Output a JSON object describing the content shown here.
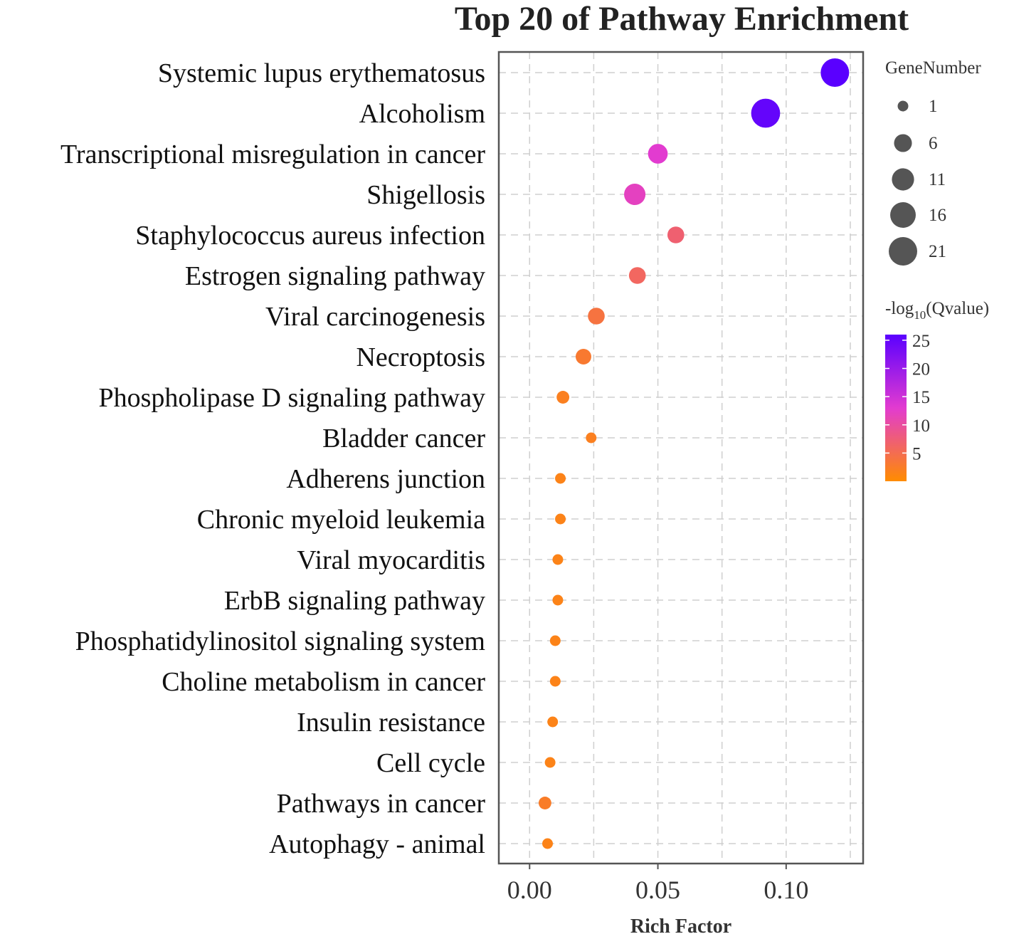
{
  "chart_data": {
    "type": "scatter",
    "title": "Top 20 of Pathway Enrichment",
    "xlabel": "Rich Factor",
    "ylabel": "",
    "xlim": [
      -0.012,
      0.13
    ],
    "xticks": [
      "0.00",
      "0.05",
      "0.10"
    ],
    "xtick_values": [
      0.0,
      0.05,
      0.1
    ],
    "grid": true,
    "points": [
      {
        "pathway": "Systemic lupus erythematosus",
        "rich_factor": 0.119,
        "gene_number": 21,
        "neg_log10_q": 26
      },
      {
        "pathway": "Alcoholism",
        "rich_factor": 0.092,
        "gene_number": 22,
        "neg_log10_q": 25
      },
      {
        "pathway": "Transcriptional misregulation in cancer",
        "rich_factor": 0.05,
        "gene_number": 8,
        "neg_log10_q": 13
      },
      {
        "pathway": "Shigellosis",
        "rich_factor": 0.041,
        "gene_number": 10,
        "neg_log10_q": 12
      },
      {
        "pathway": "Staphylococcus aureus infection",
        "rich_factor": 0.057,
        "gene_number": 5,
        "neg_log10_q": 7
      },
      {
        "pathway": "Estrogen signaling pathway",
        "rich_factor": 0.042,
        "gene_number": 5,
        "neg_log10_q": 6
      },
      {
        "pathway": "Viral carcinogenesis",
        "rich_factor": 0.026,
        "gene_number": 5,
        "neg_log10_q": 4
      },
      {
        "pathway": "Necroptosis",
        "rich_factor": 0.021,
        "gene_number": 4,
        "neg_log10_q": 3
      },
      {
        "pathway": "Phospholipase D signaling pathway",
        "rich_factor": 0.013,
        "gene_number": 2,
        "neg_log10_q": 2
      },
      {
        "pathway": "Bladder cancer",
        "rich_factor": 0.024,
        "gene_number": 1,
        "neg_log10_q": 2
      },
      {
        "pathway": "Adherens junction",
        "rich_factor": 0.012,
        "gene_number": 1,
        "neg_log10_q": 1.5
      },
      {
        "pathway": "Chronic myeloid leukemia",
        "rich_factor": 0.012,
        "gene_number": 1,
        "neg_log10_q": 1.5
      },
      {
        "pathway": "Viral myocarditis",
        "rich_factor": 0.011,
        "gene_number": 1,
        "neg_log10_q": 1.5
      },
      {
        "pathway": "ErbB signaling pathway",
        "rich_factor": 0.011,
        "gene_number": 1,
        "neg_log10_q": 1.5
      },
      {
        "pathway": "Phosphatidylinositol signaling system",
        "rich_factor": 0.01,
        "gene_number": 1,
        "neg_log10_q": 1.5
      },
      {
        "pathway": "Choline metabolism in cancer",
        "rich_factor": 0.01,
        "gene_number": 1,
        "neg_log10_q": 1.5
      },
      {
        "pathway": "Insulin resistance",
        "rich_factor": 0.009,
        "gene_number": 1,
        "neg_log10_q": 1.5
      },
      {
        "pathway": "Cell cycle",
        "rich_factor": 0.008,
        "gene_number": 1,
        "neg_log10_q": 1.5
      },
      {
        "pathway": "Pathways in cancer",
        "rich_factor": 0.006,
        "gene_number": 2,
        "neg_log10_q": 2.5
      },
      {
        "pathway": "Autophagy - animal",
        "rich_factor": 0.007,
        "gene_number": 1,
        "neg_log10_q": 1.5
      }
    ],
    "size_legend": {
      "title": "GeneNumber",
      "breaks": [
        1,
        6,
        11,
        16,
        21
      ],
      "labels": [
        "1",
        "6",
        "11",
        "16",
        "21"
      ]
    },
    "color_legend": {
      "title_prefix": "-log",
      "title_sub": "10",
      "title_suffix": "(Qvalue)",
      "min": 0,
      "max": 26,
      "ticks": [
        5,
        10,
        15,
        20,
        25
      ],
      "tick_labels": [
        "5",
        "10",
        "15",
        "20",
        "25"
      ],
      "low_color": "#ff8c00",
      "mid_color": "#e23bd0",
      "high_color": "#5a00ff"
    }
  }
}
